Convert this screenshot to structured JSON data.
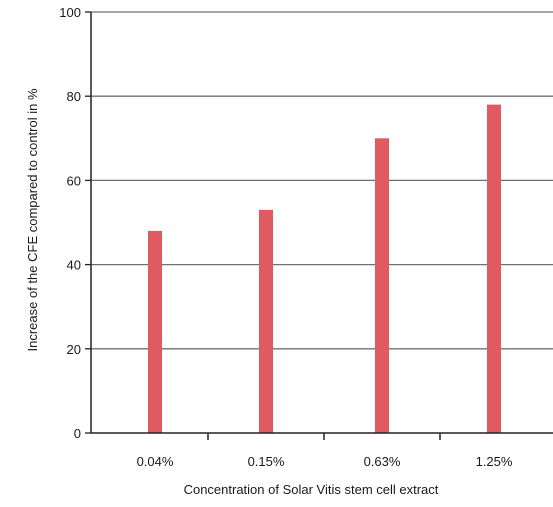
{
  "chart_data": {
    "type": "bar",
    "categories": [
      "0.04%",
      "0.15%",
      "0.63%",
      "1.25%"
    ],
    "values": [
      48,
      53,
      70,
      78
    ],
    "title": "",
    "xlabel": "Concentration of Solar Vitis stem cell extract",
    "ylabel": "Increase of the CFE compared to control in %",
    "ylim": [
      0,
      100
    ],
    "yticks": [
      0,
      20,
      40,
      60,
      80,
      100
    ],
    "grid": true,
    "legend": "none",
    "colors": {
      "bar": "#e05a61",
      "grid": "#707070",
      "axis": "#222222"
    }
  }
}
